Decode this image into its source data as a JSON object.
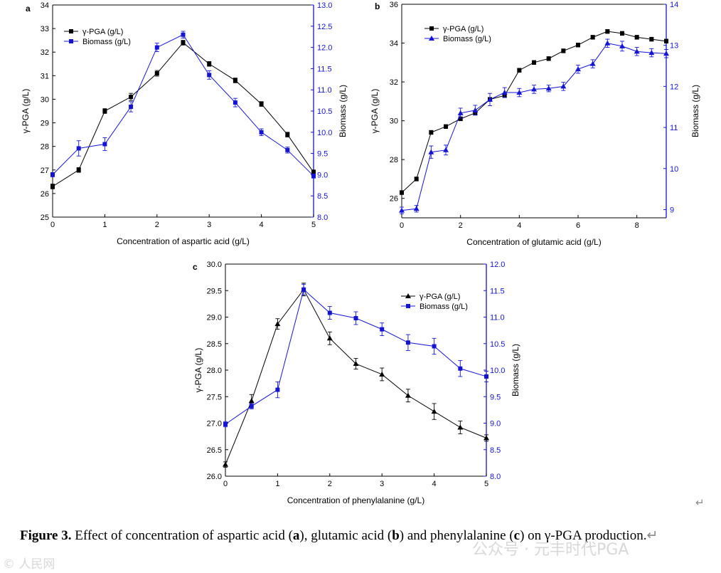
{
  "caption": {
    "label": "Figure 3.",
    "text_1": " Effect of concentration of aspartic acid (",
    "a": "a",
    "text_2": "), glutamic acid (",
    "b": "b",
    "text_3": ") and phenylalanine (",
    "c": "c",
    "text_4": ") on γ-PGA production."
  },
  "return_mark": "↵",
  "watermarks": {
    "left": "© 人民网",
    "right": "公众号 · 元丰时代PGA"
  },
  "colors": {
    "pga": "#000000",
    "biomass": "#1414d2",
    "axis": "#000000"
  },
  "chart_data": [
    {
      "panel": "a",
      "type": "line",
      "xlabel": "Concentration of aspartic acid (g/L)",
      "ylabel": "γ-PGA (g/L)",
      "y2label": "Biomass (g/L)",
      "xlim": [
        0,
        5
      ],
      "xticks": [
        "0",
        "1",
        "2",
        "3",
        "4",
        "5"
      ],
      "ylim": [
        25,
        34
      ],
      "yticks": [
        "25",
        "26",
        "27",
        "28",
        "29",
        "30",
        "31",
        "32",
        "33",
        "34"
      ],
      "y2lim": [
        8.0,
        13.0
      ],
      "y2ticks": [
        "8.0",
        "8.5",
        "9.0",
        "9.5",
        "10.0",
        "10.5",
        "11.0",
        "11.5",
        "12.0",
        "12.5",
        "13.0"
      ],
      "legend": "top-left",
      "series": [
        {
          "name": "γ-PGA (g/L)",
          "axis": "left",
          "marker": "square",
          "color": "#000000",
          "x": [
            0,
            0.5,
            1,
            1.5,
            2,
            2.5,
            3,
            3.5,
            4,
            4.5,
            5
          ],
          "y": [
            26.3,
            27.0,
            29.5,
            30.1,
            31.1,
            32.4,
            31.5,
            30.8,
            29.8,
            28.5,
            26.9
          ],
          "err": [
            0.1,
            0.1,
            0.1,
            0.15,
            0.12,
            0.1,
            0.1,
            0.1,
            0.1,
            0.1,
            0.1
          ]
        },
        {
          "name": "Biomass (g/L)",
          "axis": "right",
          "marker": "square",
          "color": "#1414d2",
          "x": [
            0,
            0.5,
            1,
            1.5,
            2,
            2.5,
            3,
            3.5,
            4,
            4.5,
            5
          ],
          "y": [
            9.0,
            9.62,
            9.72,
            10.6,
            12.0,
            12.3,
            11.35,
            10.7,
            10.0,
            9.58,
            8.97
          ],
          "err": [
            0.05,
            0.18,
            0.15,
            0.12,
            0.1,
            0.08,
            0.1,
            0.1,
            0.08,
            0.07,
            0.05
          ]
        }
      ]
    },
    {
      "panel": "b",
      "type": "line",
      "xlabel": "Concentration of glutamic acid (g/L)",
      "ylabel": "γ-PGA (g/L)",
      "y2label": "Biomass (g/L)",
      "xlim": [
        0,
        9
      ],
      "xticks": [
        "0",
        "2",
        "4",
        "6",
        "8"
      ],
      "ylim": [
        25,
        36
      ],
      "yticks": [
        "26",
        "28",
        "30",
        "32",
        "34",
        "36"
      ],
      "y2lim": [
        8.8,
        14
      ],
      "y2ticks": [
        "9",
        "10",
        "11",
        "12",
        "13",
        "14"
      ],
      "legend": "top-left",
      "series": [
        {
          "name": "γ-PGA (g/L)",
          "axis": "left",
          "marker": "square",
          "color": "#000000",
          "x": [
            0,
            0.5,
            1,
            1.5,
            2,
            2.5,
            3,
            3.5,
            4,
            4.5,
            5,
            5.5,
            6,
            6.5,
            7,
            7.5,
            8,
            8.5,
            9
          ],
          "y": [
            26.3,
            27.0,
            29.4,
            29.7,
            30.1,
            30.4,
            31.1,
            31.3,
            32.6,
            33.0,
            33.2,
            33.6,
            33.9,
            34.3,
            34.6,
            34.5,
            34.3,
            34.2,
            34.1
          ],
          "err": [
            0.1,
            0.1,
            0.1,
            0.1,
            0.1,
            0.1,
            0.1,
            0.1,
            0.1,
            0.1,
            0.1,
            0.1,
            0.1,
            0.1,
            0.1,
            0.1,
            0.1,
            0.1,
            0.1
          ]
        },
        {
          "name": "Biomass (g/L)",
          "axis": "right",
          "marker": "triangle",
          "color": "#1414d2",
          "x": [
            0,
            0.5,
            1,
            1.5,
            2,
            2.5,
            3,
            3.5,
            4,
            4.5,
            5,
            5.5,
            6,
            6.5,
            7,
            7.5,
            8,
            8.5,
            9
          ],
          "y": [
            8.98,
            9.02,
            10.4,
            10.45,
            11.35,
            11.42,
            11.68,
            11.85,
            11.85,
            11.93,
            11.95,
            12.0,
            12.42,
            12.55,
            13.05,
            12.98,
            12.85,
            12.82,
            12.8
          ],
          "err": [
            0.08,
            0.08,
            0.15,
            0.12,
            0.12,
            0.12,
            0.15,
            0.12,
            0.1,
            0.1,
            0.08,
            0.1,
            0.1,
            0.1,
            0.1,
            0.12,
            0.1,
            0.1,
            0.1
          ]
        }
      ]
    },
    {
      "panel": "c",
      "type": "line",
      "xlabel": "Concentration of phenylalanine (g/L)",
      "ylabel": "γ-PGA (g/L)",
      "y2label": "Biomass (g/L)",
      "xlim": [
        0,
        5
      ],
      "xticks": [
        "0",
        "1",
        "2",
        "3",
        "4",
        "5"
      ],
      "ylim": [
        26.0,
        30.0
      ],
      "yticks": [
        "26.0",
        "26.5",
        "27.0",
        "27.5",
        "28.0",
        "28.5",
        "29.0",
        "29.5",
        "30.0"
      ],
      "y2lim": [
        8.0,
        12.0
      ],
      "y2ticks": [
        "8.0",
        "8.5",
        "9.0",
        "9.5",
        "10.0",
        "10.5",
        "11.0",
        "11.5",
        "12.0"
      ],
      "legend": "top-right",
      "series": [
        {
          "name": "γ-PGA (g/L)",
          "axis": "left",
          "marker": "triangle",
          "color": "#000000",
          "x": [
            0,
            0.5,
            1,
            1.5,
            2,
            2.5,
            3,
            3.5,
            4,
            4.5,
            5
          ],
          "y": [
            26.22,
            27.42,
            28.87,
            29.52,
            28.6,
            28.12,
            27.92,
            27.52,
            27.22,
            26.92,
            26.72
          ],
          "err": [
            0.05,
            0.12,
            0.1,
            0.12,
            0.12,
            0.1,
            0.12,
            0.12,
            0.15,
            0.12,
            0.06
          ]
        },
        {
          "name": "Biomass (g/L)",
          "axis": "right",
          "marker": "square",
          "color": "#1414d2",
          "x": [
            0,
            0.5,
            1,
            1.5,
            2,
            2.5,
            3,
            3.5,
            4,
            4.5,
            5
          ],
          "y": [
            8.98,
            9.32,
            9.63,
            11.52,
            11.08,
            10.98,
            10.77,
            10.52,
            10.45,
            10.03,
            9.88
          ],
          "err": [
            0.05,
            0.05,
            0.15,
            0.1,
            0.12,
            0.12,
            0.12,
            0.15,
            0.15,
            0.15,
            0.1
          ]
        }
      ]
    }
  ]
}
